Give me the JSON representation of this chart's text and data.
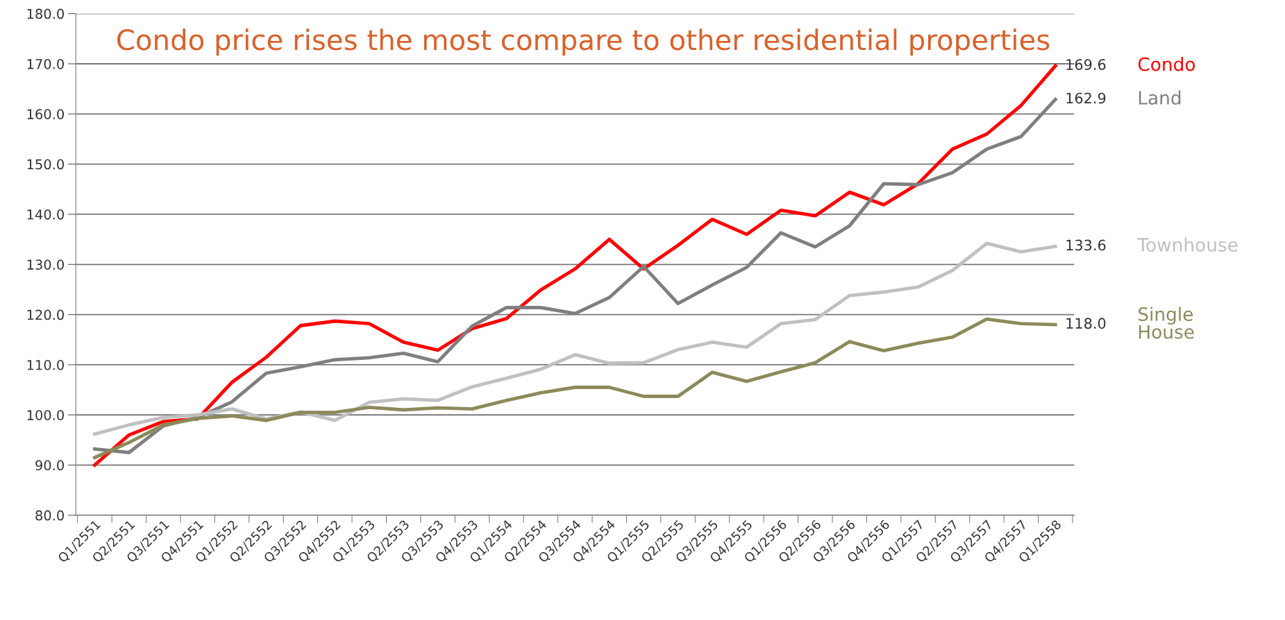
{
  "chart_data": {
    "type": "line",
    "title": "Condo price rises the most compare to other residential properties",
    "categories": [
      "Q1/2551",
      "Q2/2551",
      "Q3/2551",
      "Q4/2551",
      "Q1/2552",
      "Q2/2552",
      "Q3/2552",
      "Q4/2552",
      "Q1/2553",
      "Q2/2553",
      "Q3/2553",
      "Q4/2553",
      "Q1/2554",
      "Q2/2554",
      "Q3/2554",
      "Q4/2554",
      "Q1/2555",
      "Q2/2555",
      "Q3/2555",
      "Q4/2555",
      "Q1/2556",
      "Q2/2556",
      "Q3/2556",
      "Q4/2556",
      "Q1/2557",
      "Q2/2557",
      "Q3/2557",
      "Q4/2557",
      "Q1/2558"
    ],
    "series": [
      {
        "name": "Condo",
        "color": "#ff0000",
        "values": [
          90.0,
          96.0,
          98.7,
          99.2,
          106.5,
          111.5,
          117.8,
          118.7,
          118.2,
          114.5,
          112.9,
          117.2,
          119.2,
          124.9,
          129.1,
          135.0,
          129.1,
          133.8,
          139.0,
          136.0,
          140.8,
          139.7,
          144.4,
          141.9,
          146.1,
          153.0,
          156.0,
          161.7,
          169.6
        ],
        "value_labels": [
          null,
          null,
          null,
          null,
          null,
          null,
          null,
          null,
          null,
          null,
          null,
          null,
          null,
          null,
          null,
          null,
          null,
          null,
          null,
          null,
          null,
          null,
          null,
          null,
          null,
          null,
          null,
          null,
          "169.6"
        ]
      },
      {
        "name": "Land",
        "color": "#7f7f7f",
        "values": [
          93.2,
          92.5,
          97.8,
          99.5,
          102.6,
          108.3,
          109.6,
          111.0,
          111.4,
          112.3,
          110.6,
          117.7,
          121.4,
          121.4,
          120.2,
          123.4,
          129.6,
          122.2,
          125.9,
          129.4,
          136.3,
          133.5,
          137.7,
          146.1,
          145.9,
          148.3,
          153.0,
          155.5,
          162.9
        ],
        "value_labels": [
          null,
          null,
          null,
          null,
          null,
          null,
          null,
          null,
          null,
          null,
          null,
          null,
          null,
          null,
          null,
          null,
          null,
          null,
          null,
          null,
          null,
          null,
          null,
          null,
          null,
          null,
          null,
          null,
          "162.9"
        ]
      },
      {
        "name": "Townhouse",
        "color": "#c0c0c0",
        "values": [
          96.2,
          98.0,
          99.5,
          100.0,
          101.2,
          99.2,
          100.6,
          98.9,
          102.5,
          103.2,
          102.9,
          105.6,
          107.3,
          109.1,
          112.0,
          110.3,
          110.4,
          113.0,
          114.5,
          113.5,
          118.2,
          119.0,
          123.8,
          124.5,
          125.5,
          128.8,
          134.2,
          132.5,
          133.6
        ],
        "value_labels": [
          null,
          null,
          null,
          null,
          null,
          null,
          null,
          null,
          null,
          null,
          null,
          null,
          null,
          null,
          null,
          null,
          null,
          null,
          null,
          null,
          null,
          null,
          null,
          null,
          null,
          null,
          null,
          null,
          "133.6"
        ]
      },
      {
        "name": "Single House",
        "color": "#8c8a5a",
        "values": [
          91.5,
          94.5,
          98.0,
          99.3,
          99.8,
          98.9,
          100.5,
          100.5,
          101.5,
          101.0,
          101.4,
          101.2,
          102.9,
          104.4,
          105.5,
          105.5,
          103.7,
          103.7,
          108.5,
          106.7,
          108.6,
          110.4,
          114.6,
          112.8,
          114.3,
          115.5,
          119.1,
          118.2,
          118.0
        ],
        "value_labels": [
          null,
          null,
          null,
          null,
          null,
          null,
          null,
          null,
          null,
          null,
          null,
          null,
          null,
          null,
          null,
          null,
          null,
          null,
          null,
          null,
          null,
          null,
          null,
          null,
          null,
          null,
          null,
          null,
          "118.0"
        ]
      }
    ],
    "ylim": [
      80,
      180
    ],
    "yticks": [
      {
        "value": 80,
        "label": "80.0"
      },
      {
        "value": 90,
        "label": "90.0"
      },
      {
        "value": 100,
        "label": "100.0"
      },
      {
        "value": 110,
        "label": "110.0"
      },
      {
        "value": 120,
        "label": "120.0"
      },
      {
        "value": 130,
        "label": "130.0"
      },
      {
        "value": 140,
        "label": "140.0"
      },
      {
        "value": 150,
        "label": "150.0"
      },
      {
        "value": 160,
        "label": "160.0"
      },
      {
        "value": 170,
        "label": "170.0"
      },
      {
        "value": 180,
        "label": "180.0"
      }
    ],
    "grid": "y",
    "legend": false,
    "marker": "none",
    "line_style": "solid"
  }
}
